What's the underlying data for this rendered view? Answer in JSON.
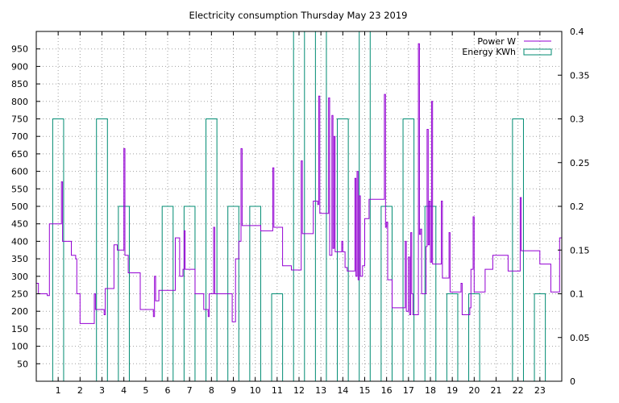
{
  "chart_data": {
    "type": "line",
    "title": "Electricity consumption Thursday May 23 2019",
    "xlabel": "",
    "ylabel": "",
    "y2label": "",
    "xlim": [
      0,
      24
    ],
    "ylim": [
      0,
      1000
    ],
    "y2lim": [
      0,
      0.4
    ],
    "grid": true,
    "legend_position": "top-right",
    "x_ticks": [
      1,
      2,
      3,
      4,
      5,
      6,
      7,
      8,
      9,
      10,
      11,
      12,
      13,
      14,
      15,
      16,
      17,
      18,
      19,
      20,
      21,
      22,
      23
    ],
    "y_ticks": [
      50,
      100,
      150,
      200,
      250,
      300,
      350,
      400,
      450,
      500,
      550,
      600,
      650,
      700,
      750,
      800,
      850,
      900,
      950
    ],
    "y2_ticks": [
      0,
      0.05,
      0.1,
      0.15,
      0.2,
      0.25,
      0.3,
      0.35,
      0.4
    ],
    "series": [
      {
        "name": "Power W",
        "axis": "left",
        "color": "#9400d3",
        "style": "step",
        "points": [
          [
            0,
            280
          ],
          [
            0.1,
            250
          ],
          [
            0.5,
            245
          ],
          [
            0.6,
            450
          ],
          [
            1.1,
            450
          ],
          [
            1.15,
            570
          ],
          [
            1.2,
            400
          ],
          [
            1.5,
            400
          ],
          [
            1.6,
            360
          ],
          [
            1.8,
            350
          ],
          [
            1.85,
            250
          ],
          [
            2.0,
            165
          ],
          [
            2.6,
            165
          ],
          [
            2.65,
            250
          ],
          [
            2.7,
            205
          ],
          [
            3.0,
            205
          ],
          [
            3.1,
            190
          ],
          [
            3.15,
            265
          ],
          [
            3.5,
            265
          ],
          [
            3.55,
            390
          ],
          [
            3.7,
            375
          ],
          [
            3.95,
            375
          ],
          [
            4.0,
            665
          ],
          [
            4.05,
            360
          ],
          [
            4.2,
            310
          ],
          [
            4.7,
            310
          ],
          [
            4.75,
            205
          ],
          [
            5.3,
            205
          ],
          [
            5.35,
            185
          ],
          [
            5.4,
            300
          ],
          [
            5.45,
            230
          ],
          [
            5.6,
            260
          ],
          [
            6.3,
            260
          ],
          [
            6.35,
            410
          ],
          [
            6.55,
            300
          ],
          [
            6.7,
            320
          ],
          [
            6.75,
            430
          ],
          [
            6.8,
            320
          ],
          [
            7.2,
            320
          ],
          [
            7.25,
            250
          ],
          [
            7.6,
            250
          ],
          [
            7.65,
            205
          ],
          [
            7.85,
            185
          ],
          [
            7.9,
            250
          ],
          [
            8.1,
            440
          ],
          [
            8.15,
            250
          ],
          [
            8.9,
            250
          ],
          [
            8.95,
            170
          ],
          [
            9.1,
            350
          ],
          [
            9.25,
            400
          ],
          [
            9.35,
            665
          ],
          [
            9.4,
            445
          ],
          [
            10.2,
            445
          ],
          [
            10.25,
            430
          ],
          [
            10.75,
            430
          ],
          [
            10.8,
            610
          ],
          [
            10.85,
            440
          ],
          [
            11.2,
            440
          ],
          [
            11.25,
            330
          ],
          [
            11.6,
            330
          ],
          [
            11.65,
            318
          ],
          [
            12.05,
            318
          ],
          [
            12.1,
            630
          ],
          [
            12.15,
            422
          ],
          [
            12.6,
            422
          ],
          [
            12.65,
            515
          ],
          [
            12.85,
            505
          ],
          [
            12.9,
            815
          ],
          [
            12.95,
            480
          ],
          [
            13.3,
            480
          ],
          [
            13.35,
            810
          ],
          [
            13.4,
            360
          ],
          [
            13.5,
            760
          ],
          [
            13.55,
            380
          ],
          [
            13.6,
            700
          ],
          [
            13.65,
            370
          ],
          [
            13.95,
            400
          ],
          [
            14.0,
            370
          ],
          [
            14.1,
            325
          ],
          [
            14.2,
            315
          ],
          [
            14.5,
            315
          ],
          [
            14.55,
            580
          ],
          [
            14.6,
            300
          ],
          [
            14.65,
            600
          ],
          [
            14.7,
            290
          ],
          [
            14.75,
            530
          ],
          [
            14.8,
            300
          ],
          [
            14.9,
            330
          ],
          [
            15.0,
            465
          ],
          [
            15.15,
            465
          ],
          [
            15.2,
            520
          ],
          [
            15.85,
            520
          ],
          [
            15.9,
            820
          ],
          [
            15.95,
            440
          ],
          [
            16.0,
            455
          ],
          [
            16.05,
            290
          ],
          [
            16.2,
            290
          ],
          [
            16.25,
            210
          ],
          [
            16.8,
            210
          ],
          [
            16.85,
            400
          ],
          [
            16.9,
            200
          ],
          [
            17.0,
            355
          ],
          [
            17.05,
            190
          ],
          [
            17.1,
            425
          ],
          [
            17.15,
            250
          ],
          [
            17.2,
            190
          ],
          [
            17.4,
            190
          ],
          [
            17.45,
            965
          ],
          [
            17.5,
            420
          ],
          [
            17.55,
            435
          ],
          [
            17.6,
            250
          ],
          [
            17.75,
            250
          ],
          [
            17.8,
            385
          ],
          [
            17.85,
            720
          ],
          [
            17.9,
            390
          ],
          [
            17.95,
            515
          ],
          [
            18.0,
            340
          ],
          [
            18.05,
            800
          ],
          [
            18.1,
            335
          ],
          [
            18.45,
            335
          ],
          [
            18.5,
            515
          ],
          [
            18.55,
            295
          ],
          [
            18.8,
            295
          ],
          [
            18.85,
            425
          ],
          [
            18.9,
            255
          ],
          [
            19.35,
            255
          ],
          [
            19.4,
            280
          ],
          [
            19.45,
            190
          ],
          [
            19.75,
            190
          ],
          [
            19.8,
            210
          ],
          [
            19.85,
            320
          ],
          [
            19.95,
            470
          ],
          [
            20.0,
            255
          ],
          [
            20.45,
            255
          ],
          [
            20.5,
            320
          ],
          [
            20.8,
            320
          ],
          [
            20.85,
            360
          ],
          [
            21.5,
            360
          ],
          [
            21.55,
            315
          ],
          [
            22.05,
            315
          ],
          [
            22.1,
            525
          ],
          [
            22.15,
            373
          ],
          [
            22.95,
            373
          ],
          [
            23.0,
            335
          ],
          [
            23.45,
            335
          ],
          [
            23.5,
            255
          ],
          [
            23.85,
            255
          ],
          [
            23.9,
            410
          ],
          [
            24,
            410
          ]
        ]
      },
      {
        "name": "Energy KWh",
        "axis": "right",
        "color": "#008b72",
        "style": "bars",
        "bar_width": 0.5,
        "bars": [
          [
            1,
            0.3
          ],
          [
            2,
            0
          ],
          [
            3,
            0.3
          ],
          [
            4,
            0.2
          ],
          [
            5,
            0
          ],
          [
            6,
            0.2
          ],
          [
            7,
            0.2
          ],
          [
            8,
            0.3
          ],
          [
            9,
            0.2
          ],
          [
            10,
            0.2
          ],
          [
            11,
            0.1
          ],
          [
            12,
            0.4
          ],
          [
            13,
            0.4
          ],
          [
            14,
            0.3
          ],
          [
            15,
            0.4
          ],
          [
            16,
            0.2
          ],
          [
            17,
            0.3
          ],
          [
            18,
            0.2
          ],
          [
            19,
            0.1
          ],
          [
            20,
            0.1
          ],
          [
            21,
            0
          ],
          [
            22,
            0.3
          ],
          [
            23,
            0.1
          ]
        ]
      }
    ]
  }
}
